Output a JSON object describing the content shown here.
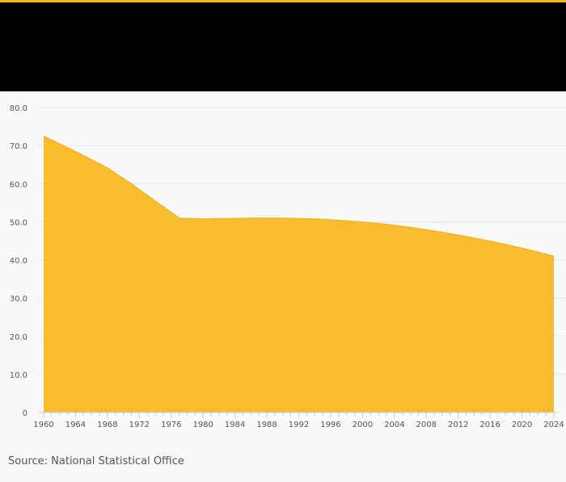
{
  "colors": {
    "accent": "#f7b600",
    "header": "#000000",
    "area_fill": "#f9bc2f",
    "area_stroke": "#f2b226",
    "grid": "#e6e6e6",
    "axis": "#cccccc",
    "tick_text": "#555555"
  },
  "source": "Source: National Statistical Office",
  "chart_data": {
    "type": "area",
    "title": "",
    "xlabel": "",
    "ylabel": "",
    "xlim": [
      1960,
      2024
    ],
    "ylim": [
      0,
      80
    ],
    "y_ticks": [
      0,
      10,
      20,
      30,
      40,
      50,
      60,
      70,
      80
    ],
    "y_tick_labels": [
      "0",
      "10.0",
      "20.0",
      "30.0",
      "40.0",
      "50.0",
      "60.0",
      "70.0",
      "80.0"
    ],
    "x_ticks": [
      1960,
      1964,
      1968,
      1972,
      1976,
      1980,
      1984,
      1988,
      1992,
      1996,
      2000,
      2004,
      2008,
      2012,
      2016,
      2020,
      2024
    ],
    "grid": true,
    "legend": "none",
    "series": [
      {
        "x": [
          1960,
          1964,
          1968,
          1971,
          1977,
          1980,
          1986,
          1990,
          1994,
          1998,
          2002,
          2006,
          2010,
          2014,
          2018,
          2022,
          2024
        ],
        "values": [
          72.5,
          68.5,
          64.2,
          60.0,
          51.0,
          50.8,
          51.0,
          51.0,
          50.8,
          50.3,
          49.6,
          48.6,
          47.3,
          45.8,
          44.1,
          42.1,
          41.0
        ]
      }
    ]
  }
}
